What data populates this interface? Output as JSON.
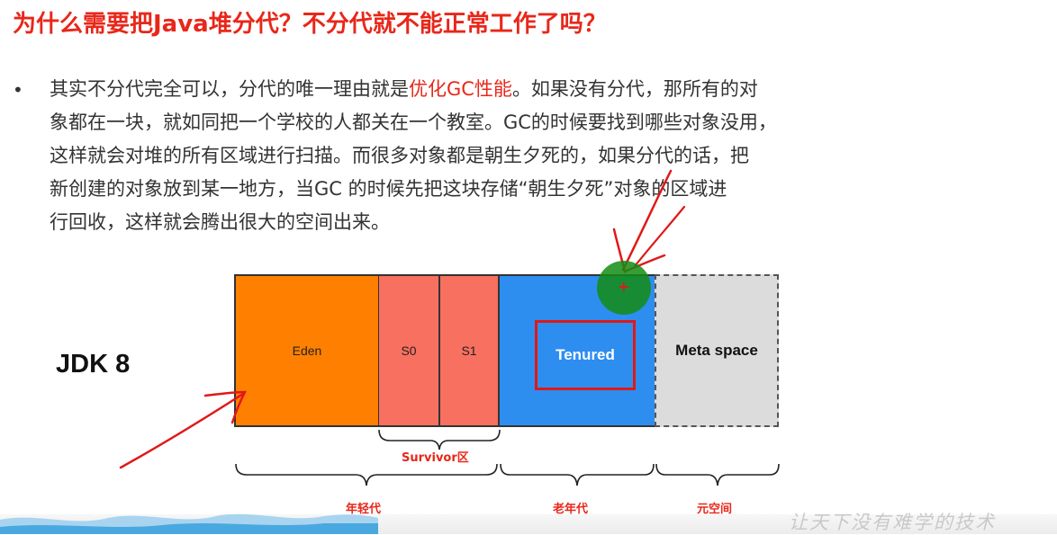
{
  "title": "为什么需要把Java堆分代？不分代就不能正常工作了吗？",
  "bullet_symbol": "•",
  "paragraph": {
    "line1_pre": "其实不分代完全可以，分代的唯一理由就是",
    "line1_highlight": "优化GC性能",
    "line1_post": "。如果没有分代，那所有的对",
    "line2": "象都在一块，就如同把一个学校的人都关在一个教室。GC的时候要找到哪些对象没用，",
    "line3": "这样就会对堆的所有区域进行扫描。而很多对象都是朝生夕死的，如果分代的话，把",
    "line4": "新创建的对象放到某一地方，当GC 的时候先把这块存储“朝生夕死”对象的区域进",
    "line5": "行回收，这样就会腾出很大的空间出来。"
  },
  "diagram": {
    "jdk_label": "JDK 8",
    "eden": "Eden",
    "s0": "S0",
    "s1": "S1",
    "tenured": "Tenured",
    "meta": "Meta space",
    "survivor_caption": "Survivor区",
    "young_caption": "年轻代",
    "old_caption": "老年代",
    "meta_caption": "元空间"
  },
  "watermark": "让天下没有难学的技术",
  "colors": {
    "accent_red": "#e8271a",
    "eden": "#ff8000",
    "survivor": "#f87060",
    "tenured": "#2d8ef0",
    "meta": "#dcdcdc"
  }
}
